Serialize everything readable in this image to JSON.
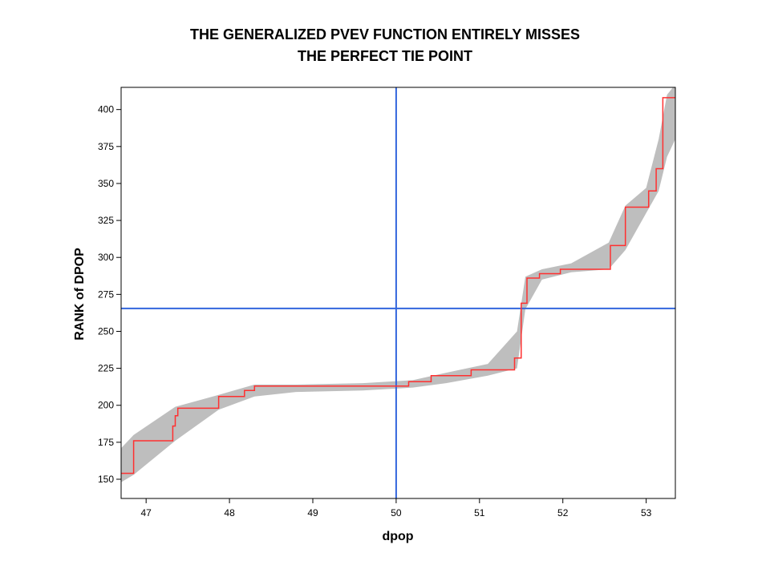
{
  "chart_data": {
    "type": "line",
    "title": "THE GENERALIZED PVEV FUNCTION ENTIRELY MISSES",
    "subtitle": "THE PERFECT TIE POINT",
    "xlabel": "dpop",
    "ylabel": "RANK of DPOP",
    "xlim": [
      46.7,
      53.35
    ],
    "ylim": [
      137,
      415
    ],
    "x_ticks": [
      47,
      48,
      49,
      50,
      51,
      52,
      53
    ],
    "y_ticks": [
      150,
      175,
      200,
      225,
      250,
      275,
      300,
      325,
      350,
      375,
      400
    ],
    "grid": false,
    "legend": "none",
    "reference_lines": [
      {
        "orientation": "vertical",
        "value": 50.0,
        "color": "#3366dd"
      },
      {
        "orientation": "horizontal",
        "value": 265.5,
        "color": "#3366dd"
      }
    ],
    "series": [
      {
        "role": "step-function",
        "color": "#ff3030",
        "x": [
          46.7,
          46.85,
          46.85,
          47.32,
          47.32,
          47.35,
          47.35,
          47.38,
          47.38,
          47.87,
          47.87,
          48.18,
          48.18,
          48.3,
          48.3,
          50.0,
          50.0,
          50.15,
          50.15,
          50.42,
          50.42,
          50.9,
          50.9,
          51.42,
          51.42,
          51.5,
          51.5,
          51.57,
          51.57,
          51.72,
          51.72,
          51.97,
          51.97,
          52.57,
          52.57,
          52.75,
          52.75,
          53.03,
          53.03,
          53.12,
          53.12,
          53.2,
          53.2,
          53.35
        ],
        "y": [
          154,
          154,
          176,
          176,
          186,
          186,
          193,
          193,
          198,
          198,
          206,
          206,
          210,
          210,
          213,
          213,
          213,
          213,
          216,
          216,
          220,
          220,
          224,
          224,
          232,
          232,
          269,
          269,
          286,
          286,
          289,
          289,
          292,
          292,
          308,
          308,
          334,
          334,
          345,
          345,
          360,
          360,
          408,
          408
        ]
      }
    ],
    "band": {
      "role": "confidence-band",
      "color": "#bebebe",
      "x": [
        46.7,
        46.85,
        47.35,
        47.87,
        48.3,
        48.8,
        49.6,
        50.2,
        50.6,
        51.1,
        51.45,
        51.55,
        51.75,
        52.1,
        52.55,
        52.75,
        53.0,
        53.15,
        53.25,
        53.35
      ],
      "upper": [
        171,
        180,
        199,
        207,
        214,
        214,
        215,
        217,
        222,
        228,
        250,
        287,
        292,
        296,
        310,
        335,
        347,
        380,
        410,
        417
      ],
      "lower": [
        148,
        153,
        176,
        197,
        206,
        209,
        210,
        212,
        215,
        220,
        225,
        265,
        285,
        290,
        292,
        305,
        330,
        345,
        368,
        380
      ]
    }
  }
}
